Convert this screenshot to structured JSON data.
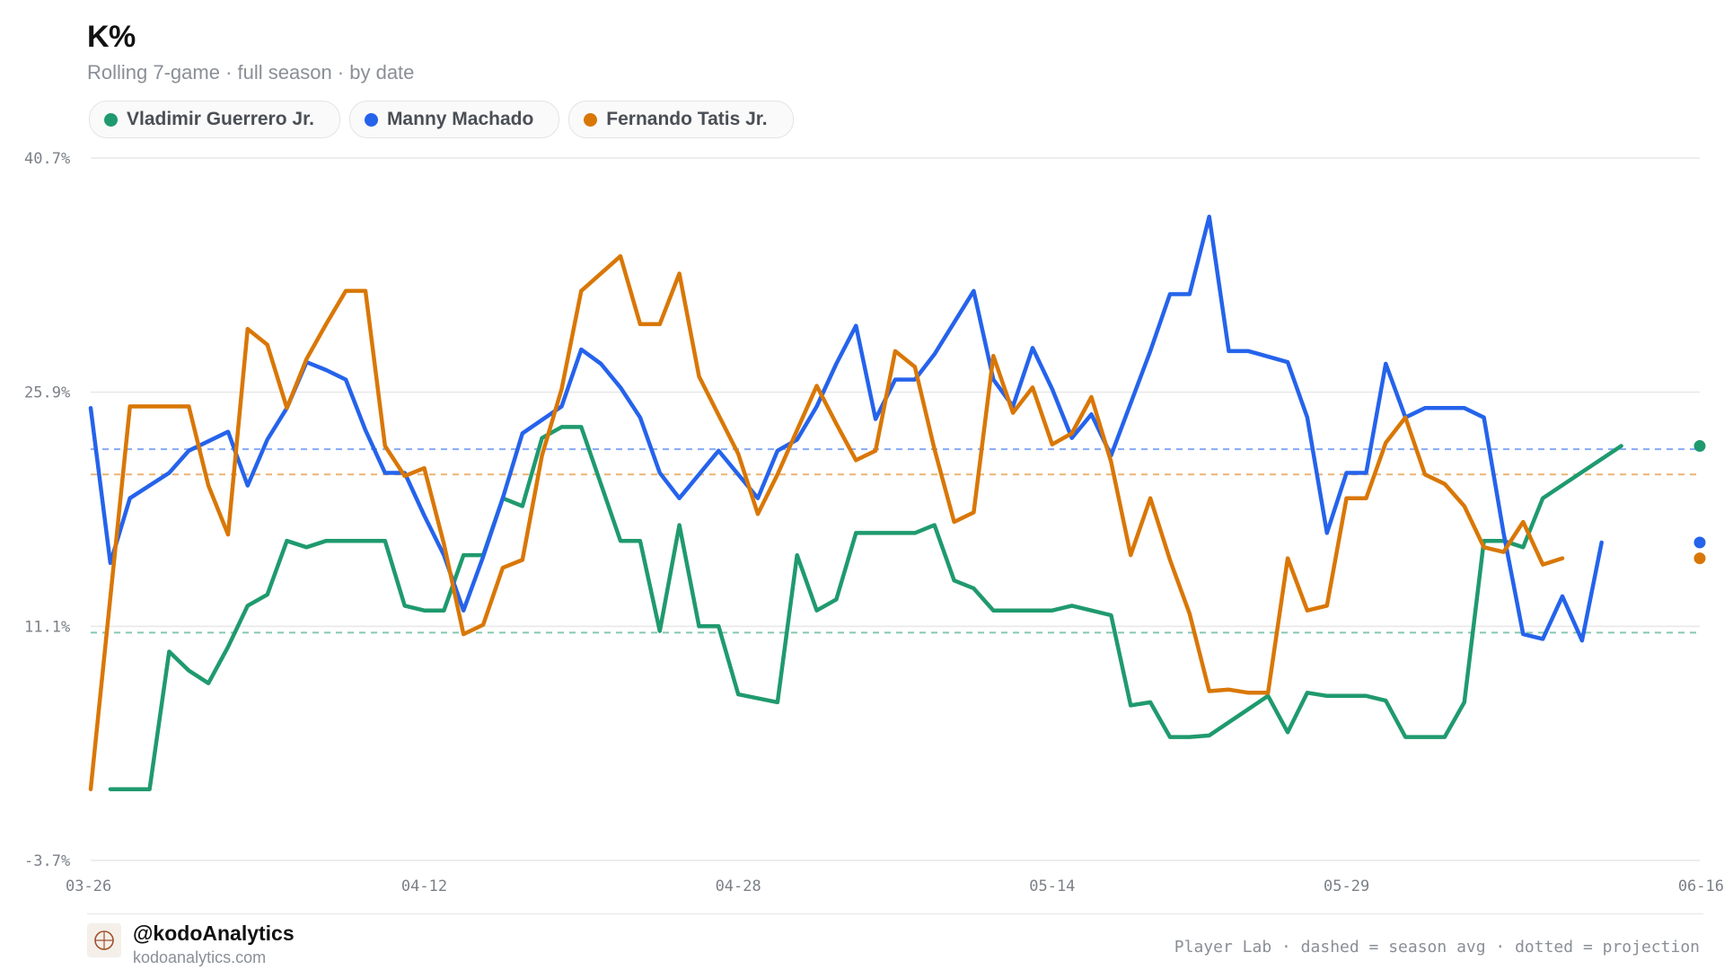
{
  "header": {
    "title": "K%",
    "subtitle": "Rolling 7-game · full season · by date"
  },
  "legend": [
    {
      "label": "Vladimir Guerrero Jr.",
      "color": "#1f9a6e"
    },
    {
      "label": "Manny Machado",
      "color": "#2563eb"
    },
    {
      "label": "Fernando Tatis Jr.",
      "color": "#d97706"
    }
  ],
  "footer": {
    "handle": "@kodoAnalytics",
    "site": "kodoanalytics.com",
    "note": "Player Lab · dashed = season avg · dotted = projection"
  },
  "chart_data": {
    "type": "line",
    "title": "K%",
    "subtitle": "Rolling 7-game · full season · by date",
    "y_ticks": [
      "40.7%",
      "25.9%",
      "11.1%",
      "-3.7%"
    ],
    "x_ticks": [
      "03-26",
      "04-12",
      "04-28",
      "05-14",
      "05-29",
      "06-16"
    ],
    "ylim": [
      -3.7,
      40.7
    ],
    "x_range": [
      "03-26",
      "06-16"
    ],
    "grid": "horizontal",
    "legend_position": "top-left",
    "series": [
      {
        "name": "Vladimir Guerrero Jr.",
        "color": "#1f9a6e",
        "season_avg": 10.7,
        "points": [
          [
            "03-27",
            0.8
          ],
          [
            "03-29",
            0.8
          ],
          [
            "03-30",
            9.5
          ],
          [
            "03-31",
            8.3
          ],
          [
            "04-01",
            7.5
          ],
          [
            "04-02",
            9.8
          ],
          [
            "04-03",
            12.4
          ],
          [
            "04-04",
            13.1
          ],
          [
            "04-05",
            16.5
          ],
          [
            "04-06",
            16.1
          ],
          [
            "04-07",
            16.5
          ],
          [
            "04-08",
            16.5
          ],
          [
            "04-09",
            16.5
          ],
          [
            "04-10",
            16.5
          ],
          [
            "04-11",
            12.4
          ],
          [
            "04-12",
            12.1
          ],
          [
            "04-13",
            12.1
          ],
          [
            "04-14",
            15.6
          ],
          [
            "04-15",
            15.6
          ],
          [
            "04-16",
            19.2
          ],
          [
            "04-17",
            18.7
          ],
          [
            "04-18",
            23.0
          ],
          [
            "04-19",
            23.7
          ],
          [
            "04-20",
            23.7
          ],
          [
            "04-21",
            20.1
          ],
          [
            "04-22",
            16.5
          ],
          [
            "04-23",
            16.5
          ],
          [
            "04-24",
            10.8
          ],
          [
            "04-25",
            17.5
          ],
          [
            "04-26",
            11.1
          ],
          [
            "04-27",
            11.1
          ],
          [
            "04-28",
            6.8
          ],
          [
            "04-30",
            6.3
          ],
          [
            "05-01",
            15.6
          ],
          [
            "05-02",
            12.1
          ],
          [
            "05-03",
            12.8
          ],
          [
            "05-04",
            17.0
          ],
          [
            "05-05",
            17.0
          ],
          [
            "05-06",
            17.0
          ],
          [
            "05-07",
            17.0
          ],
          [
            "05-08",
            17.5
          ],
          [
            "05-09",
            14.0
          ],
          [
            "05-10",
            13.5
          ],
          [
            "05-11",
            12.1
          ],
          [
            "05-12",
            12.1
          ],
          [
            "05-13",
            12.1
          ],
          [
            "05-14",
            12.1
          ],
          [
            "05-15",
            12.4
          ],
          [
            "05-16",
            12.1
          ],
          [
            "05-17",
            11.8
          ],
          [
            "05-18",
            6.1
          ],
          [
            "05-19",
            6.3
          ],
          [
            "05-20",
            4.1
          ],
          [
            "05-21",
            4.1
          ],
          [
            "05-22",
            4.2
          ],
          [
            "05-25",
            6.7
          ],
          [
            "05-26",
            4.4
          ],
          [
            "05-27",
            6.9
          ],
          [
            "05-28",
            6.7
          ],
          [
            "05-29",
            6.7
          ],
          [
            "05-30",
            6.7
          ],
          [
            "05-31",
            6.4
          ],
          [
            "06-01",
            4.1
          ],
          [
            "06-02",
            4.1
          ],
          [
            "06-03",
            4.1
          ],
          [
            "06-04",
            6.3
          ],
          [
            "06-05",
            16.5
          ],
          [
            "06-06",
            16.5
          ],
          [
            "06-07",
            16.1
          ],
          [
            "06-08",
            19.2
          ],
          [
            "06-12",
            22.5
          ]
        ]
      },
      {
        "name": "Manny Machado",
        "color": "#2563eb",
        "season_avg": 22.3,
        "points": [
          [
            "03-26",
            24.9
          ],
          [
            "03-27",
            15.1
          ],
          [
            "03-28",
            19.2
          ],
          [
            "03-30",
            20.8
          ],
          [
            "03-31",
            22.2
          ],
          [
            "04-02",
            23.4
          ],
          [
            "04-03",
            20.0
          ],
          [
            "04-04",
            22.9
          ],
          [
            "04-05",
            24.9
          ],
          [
            "04-06",
            27.8
          ],
          [
            "04-07",
            27.3
          ],
          [
            "04-08",
            26.7
          ],
          [
            "04-09",
            23.5
          ],
          [
            "04-10",
            20.8
          ],
          [
            "04-11",
            20.8
          ],
          [
            "04-12",
            18.1
          ],
          [
            "04-13",
            15.6
          ],
          [
            "04-14",
            12.1
          ],
          [
            "04-15",
            15.5
          ],
          [
            "04-16",
            19.2
          ],
          [
            "04-17",
            23.3
          ],
          [
            "04-19",
            25.0
          ],
          [
            "04-20",
            28.6
          ],
          [
            "04-21",
            27.7
          ],
          [
            "04-22",
            26.2
          ],
          [
            "04-23",
            24.3
          ],
          [
            "04-24",
            20.8
          ],
          [
            "04-25",
            19.2
          ],
          [
            "04-27",
            22.2
          ],
          [
            "04-29",
            19.2
          ],
          [
            "04-30",
            22.2
          ],
          [
            "05-01",
            22.9
          ],
          [
            "05-02",
            25.0
          ],
          [
            "05-03",
            27.7
          ],
          [
            "05-04",
            30.1
          ],
          [
            "05-05",
            24.2
          ],
          [
            "05-06",
            26.7
          ],
          [
            "05-07",
            26.7
          ],
          [
            "05-08",
            28.3
          ],
          [
            "05-10",
            32.3
          ],
          [
            "05-11",
            26.7
          ],
          [
            "05-12",
            25.0
          ],
          [
            "05-13",
            28.7
          ],
          [
            "05-14",
            26.1
          ],
          [
            "05-15",
            23.0
          ],
          [
            "05-16",
            24.5
          ],
          [
            "05-17",
            21.9
          ],
          [
            "05-19",
            28.5
          ],
          [
            "05-20",
            32.1
          ],
          [
            "05-21",
            32.1
          ],
          [
            "05-22",
            37.0
          ],
          [
            "05-23",
            28.5
          ],
          [
            "05-24",
            28.5
          ],
          [
            "05-26",
            27.8
          ],
          [
            "05-27",
            24.3
          ],
          [
            "05-28",
            17.0
          ],
          [
            "05-29",
            20.8
          ],
          [
            "05-30",
            20.8
          ],
          [
            "05-31",
            27.7
          ],
          [
            "06-01",
            24.3
          ],
          [
            "06-02",
            24.9
          ],
          [
            "06-03",
            24.9
          ],
          [
            "06-04",
            24.9
          ],
          [
            "06-05",
            24.3
          ],
          [
            "06-06",
            17.0
          ],
          [
            "06-07",
            10.6
          ],
          [
            "06-08",
            10.3
          ],
          [
            "06-09",
            13.0
          ],
          [
            "06-10",
            10.2
          ],
          [
            "06-11",
            16.4
          ]
        ]
      },
      {
        "name": "Fernando Tatis Jr.",
        "color": "#d97706",
        "season_avg": 20.7,
        "points": [
          [
            "03-26",
            0.8
          ],
          [
            "03-28",
            25.0
          ],
          [
            "03-30",
            25.0
          ],
          [
            "03-31",
            25.0
          ],
          [
            "04-01",
            20.0
          ],
          [
            "04-02",
            16.9
          ],
          [
            "04-03",
            29.9
          ],
          [
            "04-04",
            28.9
          ],
          [
            "04-05",
            24.9
          ],
          [
            "04-06",
            28.0
          ],
          [
            "04-07",
            30.2
          ],
          [
            "04-08",
            32.3
          ],
          [
            "04-09",
            32.3
          ],
          [
            "04-10",
            22.5
          ],
          [
            "04-11",
            20.6
          ],
          [
            "04-12",
            21.1
          ],
          [
            "04-13",
            16.3
          ],
          [
            "04-14",
            10.6
          ],
          [
            "04-15",
            11.2
          ],
          [
            "04-16",
            14.8
          ],
          [
            "04-17",
            15.3
          ],
          [
            "04-18",
            21.9
          ],
          [
            "04-19",
            26.1
          ],
          [
            "04-20",
            32.3
          ],
          [
            "04-22",
            34.5
          ],
          [
            "04-23",
            30.2
          ],
          [
            "04-24",
            30.2
          ],
          [
            "04-25",
            33.4
          ],
          [
            "04-26",
            26.9
          ],
          [
            "04-28",
            22.0
          ],
          [
            "04-29",
            18.2
          ],
          [
            "04-30",
            20.7
          ],
          [
            "05-01",
            23.5
          ],
          [
            "05-02",
            26.3
          ],
          [
            "05-03",
            23.9
          ],
          [
            "05-04",
            21.6
          ],
          [
            "05-05",
            22.2
          ],
          [
            "05-06",
            28.5
          ],
          [
            "05-07",
            27.5
          ],
          [
            "05-08",
            22.3
          ],
          [
            "05-09",
            17.7
          ],
          [
            "05-10",
            18.3
          ],
          [
            "05-11",
            28.2
          ],
          [
            "05-12",
            24.6
          ],
          [
            "05-13",
            26.2
          ],
          [
            "05-14",
            22.6
          ],
          [
            "05-15",
            23.3
          ],
          [
            "05-16",
            25.6
          ],
          [
            "05-17",
            21.5
          ],
          [
            "05-18",
            15.6
          ],
          [
            "05-19",
            19.2
          ],
          [
            "05-20",
            15.3
          ],
          [
            "05-21",
            11.9
          ],
          [
            "05-22",
            7.0
          ],
          [
            "05-23",
            7.1
          ],
          [
            "05-24",
            6.9
          ],
          [
            "05-25",
            6.9
          ],
          [
            "05-26",
            15.4
          ],
          [
            "05-27",
            12.1
          ],
          [
            "05-28",
            12.4
          ],
          [
            "05-29",
            19.2
          ],
          [
            "05-30",
            19.2
          ],
          [
            "05-31",
            22.7
          ],
          [
            "06-01",
            24.3
          ],
          [
            "06-02",
            20.7
          ],
          [
            "06-03",
            20.1
          ],
          [
            "06-04",
            18.7
          ],
          [
            "06-05",
            16.1
          ],
          [
            "06-06",
            15.8
          ],
          [
            "06-07",
            17.7
          ],
          [
            "06-08",
            15.0
          ],
          [
            "06-09",
            15.4
          ]
        ]
      }
    ]
  }
}
